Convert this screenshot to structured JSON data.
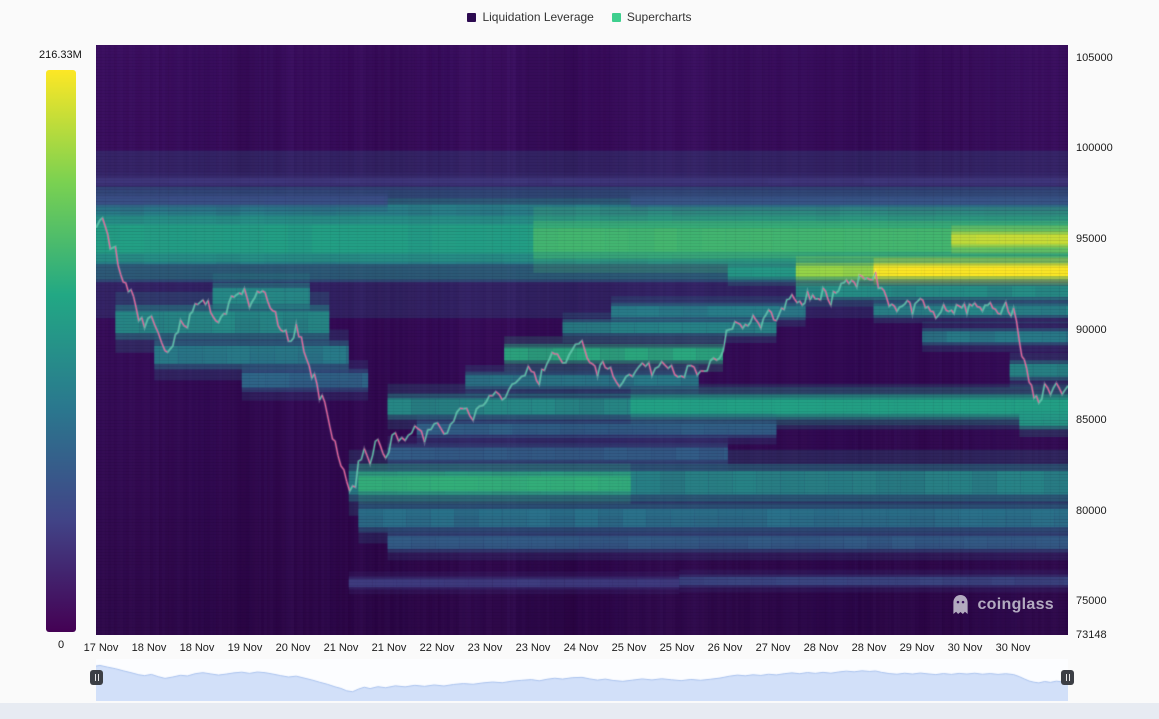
{
  "page": {
    "background": "#fafafa"
  },
  "legend": {
    "items": [
      {
        "label": "Liquidation Leverage",
        "color": "#2c0a50"
      },
      {
        "label": "Supercharts",
        "color": "#3ecf8e"
      }
    ]
  },
  "colorbar": {
    "max_label": "216.33M",
    "min_label": "0"
  },
  "watermark": {
    "text": "coinglass"
  },
  "chart_data": {
    "type": "heatmap",
    "legend": [
      "Liquidation Leverage",
      "Supercharts"
    ],
    "colorbar": {
      "max": "216.33M",
      "min": "0"
    },
    "colorscale": [
      "#440154",
      "#414487",
      "#2a788e",
      "#22a884",
      "#7ad151",
      "#fde725"
    ],
    "x_ticks": [
      "17 Nov",
      "18 Nov",
      "18 Nov",
      "19 Nov",
      "20 Nov",
      "21 Nov",
      "21 Nov",
      "22 Nov",
      "23 Nov",
      "23 Nov",
      "24 Nov",
      "25 Nov",
      "25 Nov",
      "26 Nov",
      "27 Nov",
      "28 Nov",
      "28 Nov",
      "29 Nov",
      "30 Nov",
      "30 Nov"
    ],
    "y_ticks": [
      105000,
      100000,
      95000,
      90000,
      85000,
      80000,
      75000,
      73148
    ],
    "y_range": [
      73148,
      105700
    ],
    "bands": [
      {
        "x0": 0.0,
        "x1": 1.0,
        "p0": 93600,
        "p1": 96900,
        "v": 0.42
      },
      {
        "x0": 0.0,
        "x1": 1.0,
        "p0": 94200,
        "p1": 95800,
        "v": 0.58
      },
      {
        "x0": 0.45,
        "x1": 1.0,
        "p0": 94300,
        "p1": 95600,
        "v": 0.68
      },
      {
        "x0": 0.88,
        "x1": 1.0,
        "p0": 94700,
        "p1": 95250,
        "v": 0.92
      },
      {
        "x0": 0.65,
        "x1": 0.8,
        "p0": 92900,
        "p1": 93450,
        "v": 0.55
      },
      {
        "x0": 0.72,
        "x1": 1.0,
        "p0": 92900,
        "p1": 93500,
        "v": 0.85
      },
      {
        "x0": 0.8,
        "x1": 1.0,
        "p0": 92950,
        "p1": 93480,
        "v": 1.0
      },
      {
        "x0": 0.02,
        "x1": 0.24,
        "p0": 89800,
        "p1": 91000,
        "v": 0.5
      },
      {
        "x0": 0.06,
        "x1": 0.26,
        "p0": 88100,
        "p1": 89100,
        "v": 0.44
      },
      {
        "x0": 0.12,
        "x1": 0.22,
        "p0": 91400,
        "p1": 92300,
        "v": 0.5
      },
      {
        "x0": 0.15,
        "x1": 0.28,
        "p0": 86800,
        "p1": 87600,
        "v": 0.36
      },
      {
        "x0": 0.26,
        "x1": 1.0,
        "p0": 80900,
        "p1": 82200,
        "v": 0.48
      },
      {
        "x0": 0.27,
        "x1": 0.55,
        "p0": 81100,
        "p1": 81900,
        "v": 0.64
      },
      {
        "x0": 0.27,
        "x1": 1.0,
        "p0": 79100,
        "p1": 80100,
        "v": 0.4
      },
      {
        "x0": 0.3,
        "x1": 1.0,
        "p0": 77900,
        "p1": 78600,
        "v": 0.32
      },
      {
        "x0": 0.3,
        "x1": 1.0,
        "p0": 85300,
        "p1": 86200,
        "v": 0.5
      },
      {
        "x0": 0.55,
        "x1": 1.0,
        "p0": 85400,
        "p1": 86150,
        "v": 0.58
      },
      {
        "x0": 0.33,
        "x1": 0.7,
        "p0": 84200,
        "p1": 84800,
        "v": 0.34
      },
      {
        "x0": 0.3,
        "x1": 0.65,
        "p0": 82800,
        "p1": 83500,
        "v": 0.32
      },
      {
        "x0": 0.42,
        "x1": 0.645,
        "p0": 88300,
        "p1": 89000,
        "v": 0.62
      },
      {
        "x0": 0.38,
        "x1": 0.62,
        "p0": 86900,
        "p1": 87500,
        "v": 0.44
      },
      {
        "x0": 0.48,
        "x1": 0.7,
        "p0": 89800,
        "p1": 90400,
        "v": 0.48
      },
      {
        "x0": 0.53,
        "x1": 0.73,
        "p0": 90700,
        "p1": 91300,
        "v": 0.45
      },
      {
        "x0": 0.72,
        "x1": 1.0,
        "p0": 91800,
        "p1": 92400,
        "v": 0.52
      },
      {
        "x0": 0.8,
        "x1": 1.0,
        "p0": 90800,
        "p1": 91300,
        "v": 0.48
      },
      {
        "x0": 0.85,
        "x1": 1.0,
        "p0": 89300,
        "p1": 89900,
        "v": 0.44
      },
      {
        "x0": 0.94,
        "x1": 1.0,
        "p0": 87400,
        "p1": 88100,
        "v": 0.5
      },
      {
        "x0": 0.95,
        "x1": 1.0,
        "p0": 84700,
        "p1": 85400,
        "v": 0.55
      },
      {
        "x0": 0.0,
        "x1": 0.3,
        "p0": 96900,
        "p1": 97350,
        "v": 0.24
      },
      {
        "x0": 0.55,
        "x1": 1.0,
        "p0": 96900,
        "p1": 97300,
        "v": 0.26
      },
      {
        "x0": 0.0,
        "x1": 1.0,
        "p0": 98000,
        "p1": 98350,
        "v": 0.17
      },
      {
        "x0": 0.26,
        "x1": 0.6,
        "p0": 75800,
        "p1": 76250,
        "v": 0.2
      },
      {
        "x0": 0.6,
        "x1": 1.0,
        "p0": 75900,
        "p1": 76350,
        "v": 0.24
      }
    ],
    "price_line": {
      "color_up": "#56c8a8",
      "color_down": "#f0609a",
      "points": [
        [
          0.0,
          95700
        ],
        [
          0.004,
          96100
        ],
        [
          0.012,
          95100
        ],
        [
          0.02,
          94200
        ],
        [
          0.028,
          93000
        ],
        [
          0.036,
          91900
        ],
        [
          0.044,
          90700
        ],
        [
          0.05,
          90200
        ],
        [
          0.057,
          90900
        ],
        [
          0.064,
          89600
        ],
        [
          0.071,
          88600
        ],
        [
          0.079,
          89400
        ],
        [
          0.087,
          90400
        ],
        [
          0.094,
          90000
        ],
        [
          0.102,
          91300
        ],
        [
          0.11,
          91900
        ],
        [
          0.118,
          91200
        ],
        [
          0.126,
          90500
        ],
        [
          0.134,
          91100
        ],
        [
          0.142,
          91800
        ],
        [
          0.15,
          92200
        ],
        [
          0.158,
          91500
        ],
        [
          0.166,
          92300
        ],
        [
          0.174,
          91900
        ],
        [
          0.182,
          91100
        ],
        [
          0.19,
          90200
        ],
        [
          0.198,
          89400
        ],
        [
          0.206,
          89900
        ],
        [
          0.214,
          88800
        ],
        [
          0.222,
          87700
        ],
        [
          0.23,
          86400
        ],
        [
          0.238,
          85200
        ],
        [
          0.246,
          83700
        ],
        [
          0.252,
          82800
        ],
        [
          0.258,
          81400
        ],
        [
          0.264,
          80900
        ],
        [
          0.27,
          82400
        ],
        [
          0.276,
          83500
        ],
        [
          0.282,
          82700
        ],
        [
          0.29,
          83800
        ],
        [
          0.298,
          83200
        ],
        [
          0.308,
          84300
        ],
        [
          0.318,
          83700
        ],
        [
          0.328,
          84600
        ],
        [
          0.338,
          84000
        ],
        [
          0.348,
          84800
        ],
        [
          0.358,
          84200
        ],
        [
          0.368,
          85100
        ],
        [
          0.378,
          85600
        ],
        [
          0.388,
          85200
        ],
        [
          0.398,
          86000
        ],
        [
          0.408,
          86500
        ],
        [
          0.418,
          86100
        ],
        [
          0.428,
          87000
        ],
        [
          0.438,
          87500
        ],
        [
          0.448,
          87900
        ],
        [
          0.456,
          87200
        ],
        [
          0.464,
          88100
        ],
        [
          0.472,
          88700
        ],
        [
          0.48,
          88200
        ],
        [
          0.49,
          89000
        ],
        [
          0.5,
          89200
        ],
        [
          0.508,
          88300
        ],
        [
          0.516,
          87600
        ],
        [
          0.524,
          88200
        ],
        [
          0.532,
          87400
        ],
        [
          0.542,
          86900
        ],
        [
          0.552,
          87600
        ],
        [
          0.562,
          88300
        ],
        [
          0.572,
          87700
        ],
        [
          0.582,
          88400
        ],
        [
          0.592,
          87800
        ],
        [
          0.602,
          87300
        ],
        [
          0.612,
          88000
        ],
        [
          0.622,
          87500
        ],
        [
          0.632,
          88100
        ],
        [
          0.642,
          88800
        ],
        [
          0.652,
          89900
        ],
        [
          0.66,
          90500
        ],
        [
          0.668,
          90100
        ],
        [
          0.676,
          90700
        ],
        [
          0.684,
          90300
        ],
        [
          0.692,
          91000
        ],
        [
          0.7,
          90600
        ],
        [
          0.708,
          91300
        ],
        [
          0.716,
          91800
        ],
        [
          0.724,
          91300
        ],
        [
          0.732,
          92000
        ],
        [
          0.74,
          91500
        ],
        [
          0.748,
          92100
        ],
        [
          0.756,
          91600
        ],
        [
          0.764,
          92300
        ],
        [
          0.772,
          92800
        ],
        [
          0.78,
          92400
        ],
        [
          0.788,
          93000
        ],
        [
          0.796,
          92600
        ],
        [
          0.802,
          92900
        ],
        [
          0.808,
          92100
        ],
        [
          0.816,
          91400
        ],
        [
          0.824,
          91000
        ],
        [
          0.832,
          91600
        ],
        [
          0.84,
          91100
        ],
        [
          0.848,
          91700
        ],
        [
          0.856,
          91200
        ],
        [
          0.864,
          90800
        ],
        [
          0.872,
          91400
        ],
        [
          0.88,
          90900
        ],
        [
          0.888,
          91500
        ],
        [
          0.896,
          91100
        ],
        [
          0.904,
          91600
        ],
        [
          0.912,
          91000
        ],
        [
          0.92,
          91400
        ],
        [
          0.928,
          90900
        ],
        [
          0.936,
          91300
        ],
        [
          0.944,
          90800
        ],
        [
          0.95,
          89600
        ],
        [
          0.955,
          88300
        ],
        [
          0.96,
          87100
        ],
        [
          0.965,
          86400
        ],
        [
          0.97,
          86000
        ],
        [
          0.976,
          86800
        ],
        [
          0.982,
          86300
        ],
        [
          0.988,
          87000
        ],
        [
          0.994,
          86600
        ],
        [
          1.0,
          86900
        ]
      ]
    },
    "navigator": {
      "fill": "#cdddf8",
      "line": "#a9c2ee"
    }
  }
}
